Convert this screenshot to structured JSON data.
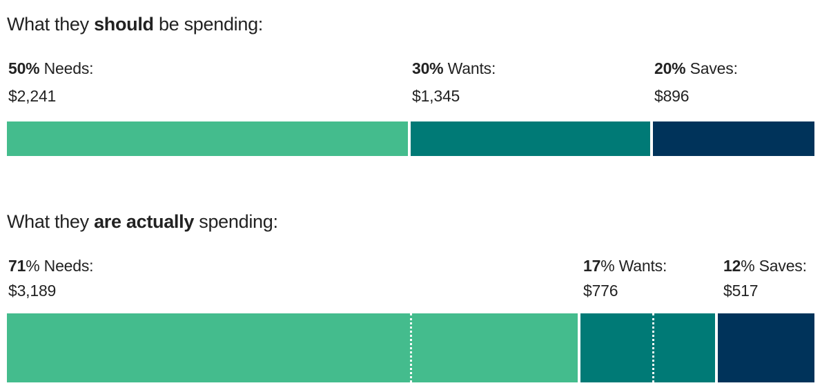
{
  "colors": {
    "needs": "#44BC8D",
    "wants": "#007A76",
    "saves": "#00335A"
  },
  "chart_data": [
    {
      "type": "bar",
      "orientation": "horizontal-stacked",
      "title": {
        "pre": "What they",
        "bold": "should",
        "post": "be spending:"
      },
      "segments": [
        {
          "name": "Needs",
          "pct_label": "50%",
          "name_label": "Needs:",
          "value": 50,
          "amount": "$2,241"
        },
        {
          "name": "Wants",
          "pct_label": "30%",
          "name_label": "Wants:",
          "value": 30,
          "amount": "$1,345"
        },
        {
          "name": "Saves",
          "pct_label": "20%",
          "name_label": "Saves:",
          "value": 20,
          "amount": "$896"
        }
      ]
    },
    {
      "type": "bar",
      "orientation": "horizontal-stacked",
      "title": {
        "pre": "What they",
        "bold": "are actually",
        "post": "spending:"
      },
      "segments": [
        {
          "name": "Needs",
          "pct_num": "71",
          "pct_sign": "%",
          "name_label": "Needs:",
          "value": 71,
          "amount": "$3,189"
        },
        {
          "name": "Wants",
          "pct_num": "17",
          "pct_sign": "%",
          "name_label": "Wants:",
          "value": 17,
          "amount": "$776"
        },
        {
          "name": "Saves",
          "pct_num": "12",
          "pct_sign": "%",
          "name_label": "Saves:",
          "value": 12,
          "amount": "$517"
        }
      ],
      "reference_markers": [
        50,
        80
      ]
    }
  ]
}
